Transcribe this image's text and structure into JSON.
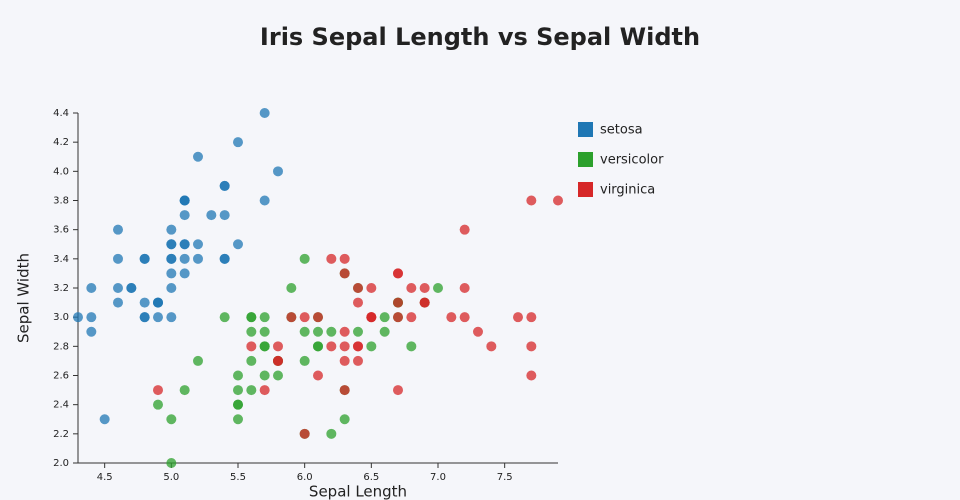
{
  "chart_data": {
    "type": "scatter",
    "title": "Iris Sepal Length vs Sepal Width",
    "x_label": "Sepal Length",
    "y_label": "Sepal Width",
    "xlim": [
      4.3,
      7.9
    ],
    "ylim": [
      2.0,
      4.4
    ],
    "xticks": [
      4.5,
      {
        "value": 5,
        "label": "5.0"
      },
      5.5,
      {
        "value": 6,
        "label": "6.0"
      },
      6.5,
      {
        "value": 7,
        "label": "7.0"
      },
      7.5
    ],
    "yticks": [
      {
        "value": 2,
        "label": "2.0"
      },
      2.2,
      2.4,
      2.6,
      2.8,
      {
        "value": 3,
        "label": "3.0"
      },
      3.2,
      3.4,
      3.6,
      3.8,
      {
        "value": 4,
        "label": "4.0"
      },
      4.2,
      4.4
    ],
    "legend": "top-right",
    "series": [
      {
        "name": "setosa",
        "color": "#1f77b4",
        "x": [
          5.1,
          4.9,
          4.7,
          4.6,
          5.0,
          5.4,
          4.6,
          5.0,
          4.4,
          4.9,
          5.4,
          4.8,
          4.8,
          4.3,
          5.8,
          5.7,
          5.4,
          5.1,
          5.7,
          5.1,
          5.4,
          5.1,
          4.6,
          5.1,
          4.8,
          5.0,
          5.0,
          5.2,
          5.2,
          4.7,
          4.8,
          5.4,
          5.2,
          5.5,
          4.9,
          5.0,
          5.5,
          4.9,
          4.4,
          5.1,
          5.0,
          4.5,
          4.4,
          5.0,
          5.1,
          4.8,
          5.1,
          4.6,
          5.3,
          5.0
        ],
        "values": [
          3.5,
          3.0,
          3.2,
          3.1,
          3.6,
          3.9,
          3.4,
          3.4,
          2.9,
          3.1,
          3.7,
          3.4,
          3.0,
          3.0,
          4.0,
          4.4,
          3.9,
          3.5,
          3.8,
          3.8,
          3.4,
          3.7,
          3.6,
          3.3,
          3.4,
          3.0,
          3.4,
          3.5,
          3.4,
          3.2,
          3.1,
          3.4,
          4.1,
          4.2,
          3.1,
          3.2,
          3.5,
          3.1,
          3.0,
          3.4,
          3.5,
          2.3,
          3.2,
          3.5,
          3.8,
          3.0,
          3.8,
          3.2,
          3.7,
          3.3
        ]
      },
      {
        "name": "versicolor",
        "color": "#2ca02c",
        "x": [
          7.0,
          6.4,
          6.9,
          5.5,
          6.5,
          5.7,
          6.3,
          4.9,
          6.6,
          5.2,
          5.0,
          5.9,
          6.0,
          6.1,
          5.6,
          6.7,
          5.6,
          5.8,
          6.2,
          5.6,
          5.9,
          6.1,
          6.3,
          6.1,
          6.4,
          6.6,
          6.8,
          6.7,
          6.0,
          5.7,
          5.5,
          5.5,
          5.8,
          6.0,
          5.4,
          6.0,
          6.7,
          6.3,
          5.6,
          5.5,
          5.5,
          6.1,
          5.8,
          5.0,
          5.6,
          5.7,
          5.7,
          6.2,
          5.1,
          5.7
        ],
        "values": [
          3.2,
          3.2,
          3.1,
          2.3,
          2.8,
          2.8,
          3.3,
          2.4,
          2.9,
          2.7,
          2.0,
          3.0,
          2.2,
          2.9,
          2.9,
          3.1,
          3.0,
          2.7,
          2.2,
          2.5,
          3.2,
          2.8,
          2.5,
          2.8,
          2.9,
          3.0,
          2.8,
          3.0,
          2.9,
          2.6,
          2.4,
          2.4,
          2.7,
          2.7,
          3.0,
          3.4,
          3.1,
          2.3,
          3.0,
          2.5,
          2.6,
          3.0,
          2.6,
          2.3,
          2.7,
          3.0,
          2.9,
          2.9,
          2.5,
          2.8
        ]
      },
      {
        "name": "virginica",
        "color": "#d62728",
        "x": [
          6.3,
          5.8,
          7.1,
          6.3,
          6.5,
          7.6,
          4.9,
          7.3,
          6.7,
          7.2,
          6.5,
          6.4,
          6.8,
          5.7,
          5.8,
          6.4,
          6.5,
          7.7,
          7.7,
          6.0,
          6.9,
          5.6,
          7.7,
          6.3,
          6.7,
          7.2,
          6.2,
          6.1,
          6.4,
          7.2,
          7.4,
          7.9,
          6.4,
          6.3,
          6.1,
          7.7,
          6.3,
          6.4,
          6.0,
          6.9,
          6.7,
          6.9,
          5.8,
          6.8,
          6.7,
          6.7,
          6.3,
          6.5,
          6.2,
          5.9
        ],
        "values": [
          3.3,
          2.7,
          3.0,
          2.9,
          3.0,
          3.0,
          2.5,
          2.9,
          2.5,
          3.6,
          3.2,
          2.7,
          3.0,
          2.5,
          2.8,
          3.2,
          3.0,
          3.8,
          2.6,
          2.2,
          3.2,
          2.8,
          2.8,
          2.7,
          3.3,
          3.2,
          2.8,
          3.0,
          2.8,
          3.0,
          2.8,
          3.8,
          2.8,
          2.8,
          2.6,
          3.0,
          3.4,
          3.1,
          3.0,
          3.1,
          3.1,
          3.1,
          2.7,
          3.2,
          3.3,
          3.0,
          2.5,
          3.0,
          3.4,
          3.0
        ]
      }
    ]
  }
}
